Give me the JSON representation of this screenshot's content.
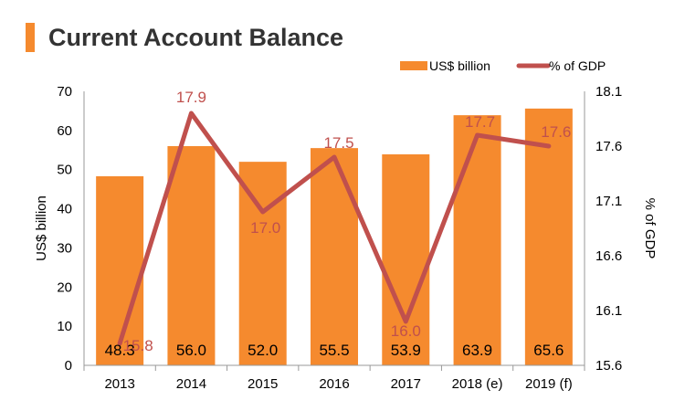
{
  "title": "Current Account Balance",
  "colors": {
    "accent": "#F58A2E",
    "bar": "#F58A2E",
    "line": "#C0504D",
    "axis": "#999999",
    "label_dark": "#000000",
    "label_red": "#C0504D"
  },
  "chart_data": {
    "type": "bar",
    "title": "Current Account Balance",
    "categories": [
      "2013",
      "2014",
      "2015",
      "2016",
      "2017",
      "2018 (e)",
      "2019 (f)"
    ],
    "ylabel": "US$ billion",
    "y2label": "% of GDP",
    "ylim": [
      0,
      70
    ],
    "y2lim": [
      15.6,
      18.1
    ],
    "yticks": [
      "0",
      "10",
      "20",
      "30",
      "40",
      "50",
      "60",
      "70"
    ],
    "y2ticks": [
      "15.6",
      "16.1",
      "16.6",
      "17.1",
      "17.6",
      "18.1"
    ],
    "legend_position": "top-right",
    "grid": false,
    "series": [
      {
        "name": "US$ billion",
        "type": "bar",
        "axis": "left",
        "values": [
          48.3,
          56.0,
          52.0,
          55.5,
          53.9,
          63.9,
          65.6
        ],
        "labels": [
          "48.3",
          "56.0",
          "52.0",
          "55.5",
          "53.9",
          "63.9",
          "65.6"
        ]
      },
      {
        "name": "% of GDP",
        "type": "line",
        "axis": "right",
        "values": [
          15.8,
          17.9,
          17.0,
          17.5,
          16.0,
          17.7,
          17.6
        ],
        "labels": [
          "15.8",
          "17.9",
          "17.0",
          "17.5",
          "16.0",
          "17.7",
          "17.6"
        ]
      }
    ]
  }
}
